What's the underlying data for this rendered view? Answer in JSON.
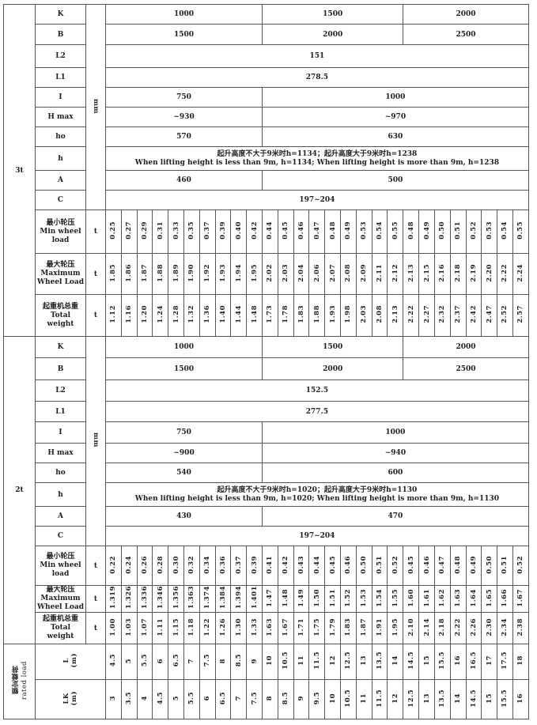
{
  "sections": [
    {
      "load": "3t",
      "unit_mm": "mm",
      "unit_t": "t",
      "K": [
        "1000",
        "1500",
        "2000"
      ],
      "B": [
        "1500",
        "2000",
        "2500"
      ],
      "L2": "151",
      "L1": "278.5",
      "I": [
        "750",
        "1000"
      ],
      "Hmax": [
        "~930",
        "~970"
      ],
      "ho": [
        "570",
        "630"
      ],
      "h_cn": "起升高度不大于9米时h=1134；起升高度大于9米时h=1238",
      "h_en": "When lifting height is less than 9m, h=1134; When lifting height is more than 9m, h=1238",
      "A": [
        "460",
        "500"
      ],
      "C": "197~204",
      "min": [
        "0.25",
        "0.27",
        "0.29",
        "0.31",
        "0.33",
        "0.35",
        "0.37",
        "0.39",
        "0.40",
        "0.42",
        "0.44",
        "0.45",
        "0.46",
        "0.47",
        "0.48",
        "0.49",
        "0.53",
        "0.54",
        "0.55",
        "0.48",
        "0.49",
        "0.50",
        "0.51",
        "0.52",
        "0.53",
        "0.54",
        "0.55"
      ],
      "max": [
        "1.85",
        "1.86",
        "1.87",
        "1.88",
        "1.89",
        "1.90",
        "1.92",
        "1.93",
        "1.94",
        "1.95",
        "2.02",
        "2.03",
        "2.04",
        "2.06",
        "2.07",
        "2.08",
        "2.09",
        "2.11",
        "2.12",
        "2.13",
        "2.15",
        "2.16",
        "2.18",
        "2.19",
        "2.20",
        "2.22",
        "2.24"
      ],
      "total": [
        "1.12",
        "1.16",
        "1.20",
        "1.24",
        "1.28",
        "1.32",
        "1.36",
        "1.40",
        "1.44",
        "1.48",
        "1.73",
        "1.78",
        "1.83",
        "1.88",
        "1.93",
        "1.98",
        "2.03",
        "2.08",
        "2.13",
        "2.22",
        "2.27",
        "2.32",
        "2.37",
        "2.42",
        "2.47",
        "2.52",
        "2.57"
      ]
    },
    {
      "load": "2t",
      "unit_mm": "mm",
      "unit_t": "t",
      "K": [
        "1000",
        "1500",
        "2000"
      ],
      "B": [
        "1500",
        "2000",
        "2500"
      ],
      "L2": "152.5",
      "L1": "277.5",
      "I": [
        "750",
        "1000"
      ],
      "Hmax": [
        "~900",
        "~940"
      ],
      "ho": [
        "540",
        "600"
      ],
      "h_cn": "起升高度不大于9米时h=1020；起升高度大于9米时h=1130",
      "h_en": "When lifting height is less than 9m, h=1020; When lifting height is more than 9m, h=1130",
      "A": [
        "430",
        "470"
      ],
      "C": "197~204",
      "min": [
        "0.22",
        "0.24",
        "0.26",
        "0.28",
        "0.30",
        "0.32",
        "0.34",
        "0.36",
        "0.37",
        "0.39",
        "0.41",
        "0.42",
        "0.43",
        "0.44",
        "0.45",
        "0.46",
        "0.50",
        "0.51",
        "0.52",
        "0.45",
        "0.46",
        "0.47",
        "0.48",
        "0.49",
        "0.50",
        "0.51",
        "0.52"
      ],
      "max": [
        "1.319",
        "1.326",
        "1.336",
        "1.346",
        "1.356",
        "1.363",
        "1.374",
        "1.384",
        "1.394",
        "1.401",
        "1.47",
        "1.48",
        "1.49",
        "1.50",
        "1.51",
        "1.52",
        "1.53",
        "1.54",
        "1.55",
        "1.60",
        "1.61",
        "1.62",
        "1.63",
        "1.64",
        "1.65",
        "1.66",
        "1.67"
      ],
      "total": [
        "1.00",
        "1.03",
        "1.07",
        "1.11",
        "1.15",
        "1.18",
        "1.22",
        "1.26",
        "1.30",
        "1.33",
        "1.63",
        "1.67",
        "1.71",
        "1.75",
        "1.79",
        "1.83",
        "1.87",
        "1.91",
        "1.95",
        "2.10",
        "2.14",
        "2.18",
        "2.22",
        "2.26",
        "2.30",
        "2.34",
        "2.38"
      ]
    }
  ],
  "labels": {
    "K": "K",
    "B": "B",
    "L2": "L2",
    "L1": "L1",
    "I": "I",
    "Hmax": "H max",
    "ho": "ho",
    "h": "h",
    "A": "A",
    "C": "C",
    "min": [
      "最小轮压",
      "Min wheel",
      "load"
    ],
    "max": [
      "最大轮压",
      "Maximum",
      "Wheel Load"
    ],
    "total": [
      "起重机总重",
      "Total",
      "weight"
    ]
  },
  "rated": {
    "label_cn": "额定载荷",
    "label_en": "rated load",
    "L_label": "L",
    "LK_label": "LK",
    "unit": "(m)",
    "L": [
      "4.5",
      "5",
      "5.5",
      "6",
      "6.5",
      "7",
      "7.5",
      "8",
      "8.5",
      "9",
      "10",
      "10.5",
      "11",
      "11.5",
      "12",
      "12.5",
      "13",
      "13.5",
      "14",
      "14.5",
      "15",
      "15.5",
      "16",
      "16.5",
      "17",
      "17.5",
      "18"
    ],
    "LK": [
      "3",
      "3.5",
      "4",
      "4.5",
      "5",
      "5.5",
      "6",
      "6.5",
      "7",
      "7.5",
      "8",
      "8.5",
      "9",
      "9.5",
      "10",
      "10.5",
      "11",
      "11.5",
      "12",
      "12.5",
      "13",
      "13.5",
      "14",
      "14.5",
      "15",
      "15.5",
      "16"
    ]
  }
}
